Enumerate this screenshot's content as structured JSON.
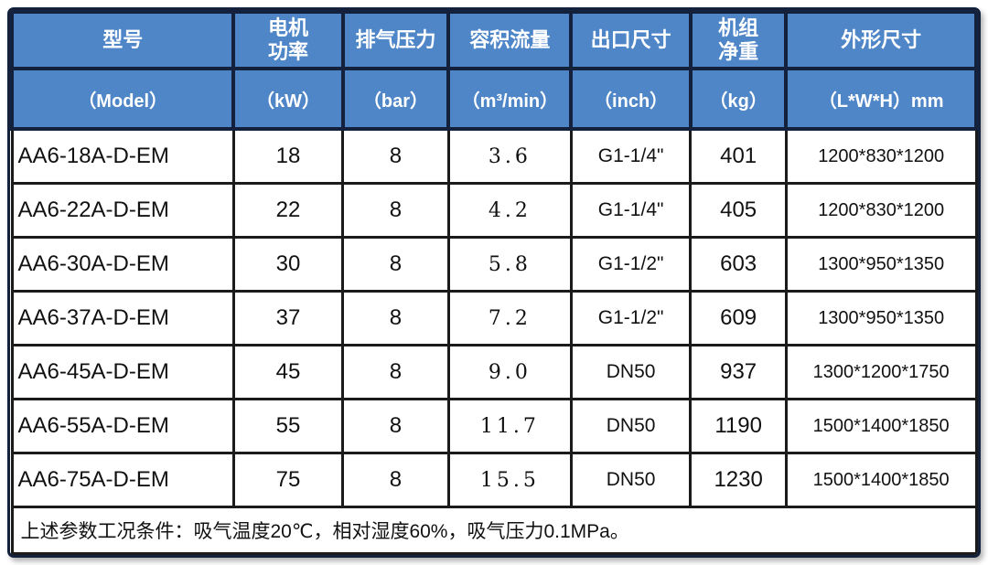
{
  "colors": {
    "header_bg": "#4F86C8",
    "header_text": "#FFFFFF",
    "header_border": "#14213C",
    "body_border": "#1B1B1B",
    "body_text": "#111111"
  },
  "table": {
    "columns": [
      {
        "title": "型号",
        "unit": "（Model）"
      },
      {
        "title": "电机\n功率",
        "unit": "（kW）"
      },
      {
        "title": "排气压力",
        "unit": "（bar）"
      },
      {
        "title": "容积流量",
        "unit": "（m³/min）"
      },
      {
        "title": "出口尺寸",
        "unit": "（inch）"
      },
      {
        "title": "机组\n净重",
        "unit": "（kg）"
      },
      {
        "title": "外形尺寸",
        "unit": "（L*W*H）mm"
      }
    ],
    "rows": [
      [
        "AA6-18A-D-EM",
        "18",
        "8",
        "3.6",
        "G1-1/4\"",
        "401",
        "1200*830*1200"
      ],
      [
        "AA6-22A-D-EM",
        "22",
        "8",
        "4.2",
        "G1-1/4\"",
        "405",
        "1200*830*1200"
      ],
      [
        "AA6-30A-D-EM",
        "30",
        "8",
        "5.8",
        "G1-1/2\"",
        "603",
        "1300*950*1350"
      ],
      [
        "AA6-37A-D-EM",
        "37",
        "8",
        "7.2",
        "G1-1/2\"",
        "609",
        "1300*950*1350"
      ],
      [
        "AA6-45A-D-EM",
        "45",
        "8",
        "9.0",
        "DN50",
        "937",
        "1300*1200*1750"
      ],
      [
        "AA6-55A-D-EM",
        "55",
        "8",
        "11.7",
        "DN50",
        "1190",
        "1500*1400*1850"
      ],
      [
        "AA6-75A-D-EM",
        "75",
        "8",
        "15.5",
        "DN50",
        "1230",
        "1500*1400*1850"
      ]
    ],
    "footnote": "上述参数工况条件：吸气温度20℃，相对湿度60%，吸气压力0.1MPa。"
  }
}
